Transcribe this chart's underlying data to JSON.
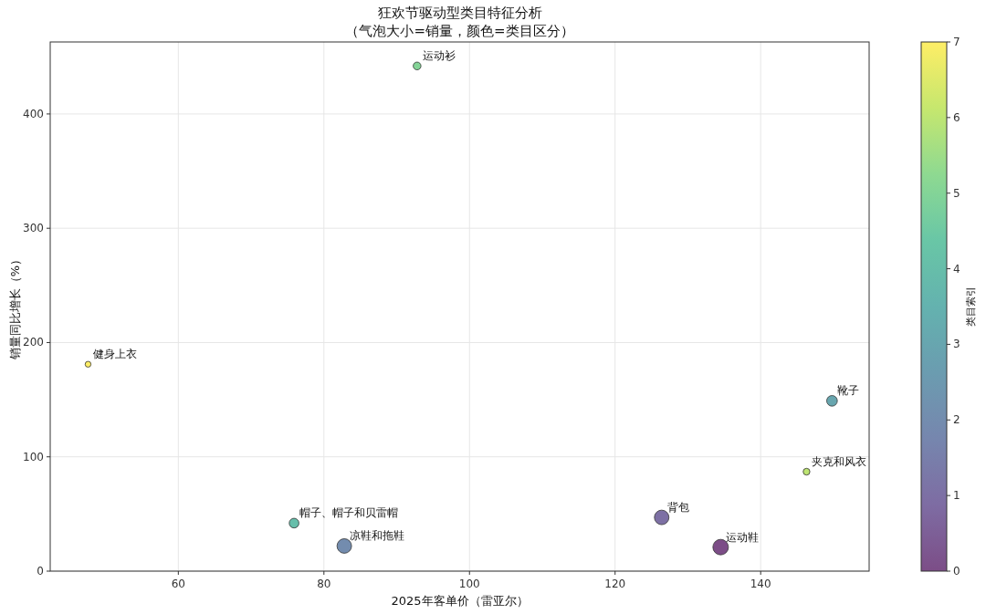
{
  "chart_data": {
    "type": "bubble",
    "title": "狂欢节驱动型类目特征分析",
    "subtitle": "（气泡大小=销量，颜色=类目区分）",
    "xlabel": "2025年客单价（雷亚尔）",
    "ylabel": "销量同比增长（%）",
    "clabel": "类目索引",
    "x": [
      134.5,
      126.4,
      82.8,
      149.8,
      75.9,
      92.8,
      146.3,
      47.6
    ],
    "values": [
      21,
      47,
      22,
      149,
      42,
      442,
      87,
      181
    ],
    "sizes": [
      1,
      0.88,
      0.88,
      0.47,
      0.39,
      0.25,
      0.19,
      0.1
    ],
    "cvalues": [
      0,
      1,
      2,
      3,
      4,
      5,
      6,
      7
    ],
    "annotations": [
      {
        "text": "运动鞋",
        "x": 134.5,
        "y": 21
      },
      {
        "text": "背包",
        "x": 126.4,
        "y": 47
      },
      {
        "text": "凉鞋和拖鞋",
        "x": 82.8,
        "y": 22
      },
      {
        "text": "靴子",
        "x": 149.8,
        "y": 149
      },
      {
        "text": "帽子、帽子和贝雷帽",
        "x": 75.9,
        "y": 42
      },
      {
        "text": "运动衫",
        "x": 92.8,
        "y": 442
      },
      {
        "text": "夹克和风衣",
        "x": 146.3,
        "y": 87
      },
      {
        "text": "健身上衣",
        "x": 47.6,
        "y": 181
      }
    ],
    "xlim": [
      42.4,
      154.9
    ],
    "ylim": [
      0,
      463
    ],
    "xticks": [
      60,
      80,
      100,
      120,
      140
    ],
    "yticks": [
      0,
      100,
      200,
      300,
      400
    ],
    "clim": [
      0,
      7
    ],
    "cticks": [
      0,
      1,
      2,
      3,
      4,
      5,
      6,
      7
    ],
    "grid": true,
    "marker": "circle"
  }
}
